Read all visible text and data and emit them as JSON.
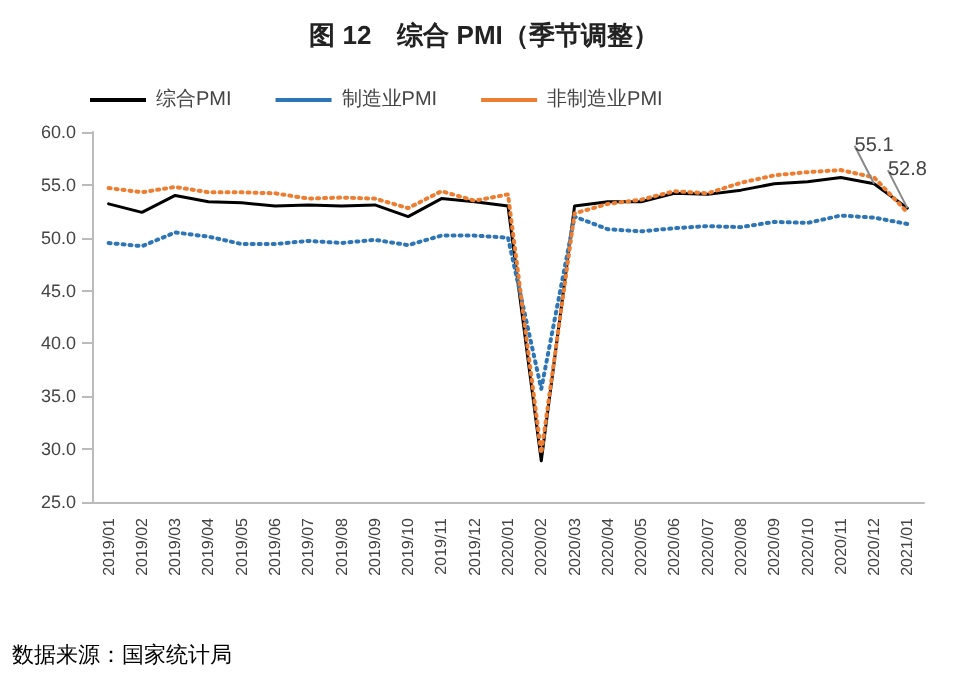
{
  "chart_data": {
    "type": "line",
    "title": "图 12　综合 PMI（季节调整）",
    "categories": [
      "2019/01",
      "2019/02",
      "2019/03",
      "2019/04",
      "2019/05",
      "2019/06",
      "2019/07",
      "2019/08",
      "2019/09",
      "2019/10",
      "2019/11",
      "2019/12",
      "2020/01",
      "2020/02",
      "2020/03",
      "2020/04",
      "2020/05",
      "2020/06",
      "2020/07",
      "2020/08",
      "2020/09",
      "2020/10",
      "2020/11",
      "2020/12",
      "2021/01"
    ],
    "series": [
      {
        "name": "综合PMI",
        "color": "#000000",
        "line_style": "solid",
        "values": [
          53.2,
          52.4,
          54.0,
          53.4,
          53.3,
          53.0,
          53.1,
          53.0,
          53.1,
          52.0,
          53.7,
          53.4,
          53.0,
          28.9,
          53.0,
          53.4,
          53.4,
          54.2,
          54.1,
          54.5,
          55.1,
          55.3,
          55.7,
          55.1,
          52.8
        ],
        "value_labels": [
          null,
          null,
          null,
          null,
          null,
          null,
          null,
          null,
          null,
          null,
          null,
          null,
          null,
          null,
          null,
          null,
          null,
          null,
          null,
          null,
          null,
          null,
          null,
          "55.1",
          "52.8"
        ]
      },
      {
        "name": "制造业PMI",
        "color": "#2e75b6",
        "line_style": "dotted",
        "values": [
          49.5,
          49.2,
          50.5,
          50.1,
          49.4,
          49.4,
          49.7,
          49.5,
          49.8,
          49.3,
          50.2,
          50.2,
          50.0,
          35.7,
          52.0,
          50.8,
          50.6,
          50.9,
          51.1,
          51.0,
          51.5,
          51.4,
          52.1,
          51.9,
          51.3
        ]
      },
      {
        "name": "非制造业PMI",
        "color": "#ed7d31",
        "line_style": "dotted",
        "values": [
          54.7,
          54.3,
          54.8,
          54.3,
          54.3,
          54.2,
          53.7,
          53.8,
          53.7,
          52.8,
          54.4,
          53.5,
          54.1,
          29.6,
          52.3,
          53.2,
          53.6,
          54.4,
          54.2,
          55.2,
          55.9,
          56.2,
          56.4,
          55.7,
          52.4
        ]
      }
    ],
    "ylim": [
      25,
      60
    ],
    "yticks": [
      {
        "value": 25,
        "label": "25.0"
      },
      {
        "value": 30,
        "label": "30.0"
      },
      {
        "value": 35,
        "label": "35.0"
      },
      {
        "value": 40,
        "label": "40.0"
      },
      {
        "value": 45,
        "label": "45.0"
      },
      {
        "value": 50,
        "label": "50.0"
      },
      {
        "value": 55,
        "label": "55.0"
      },
      {
        "value": 60,
        "label": "60.0"
      }
    ],
    "grid": false,
    "legend": "top",
    "marker": "none",
    "annotations": [
      "数据来源：国家统计局"
    ]
  }
}
